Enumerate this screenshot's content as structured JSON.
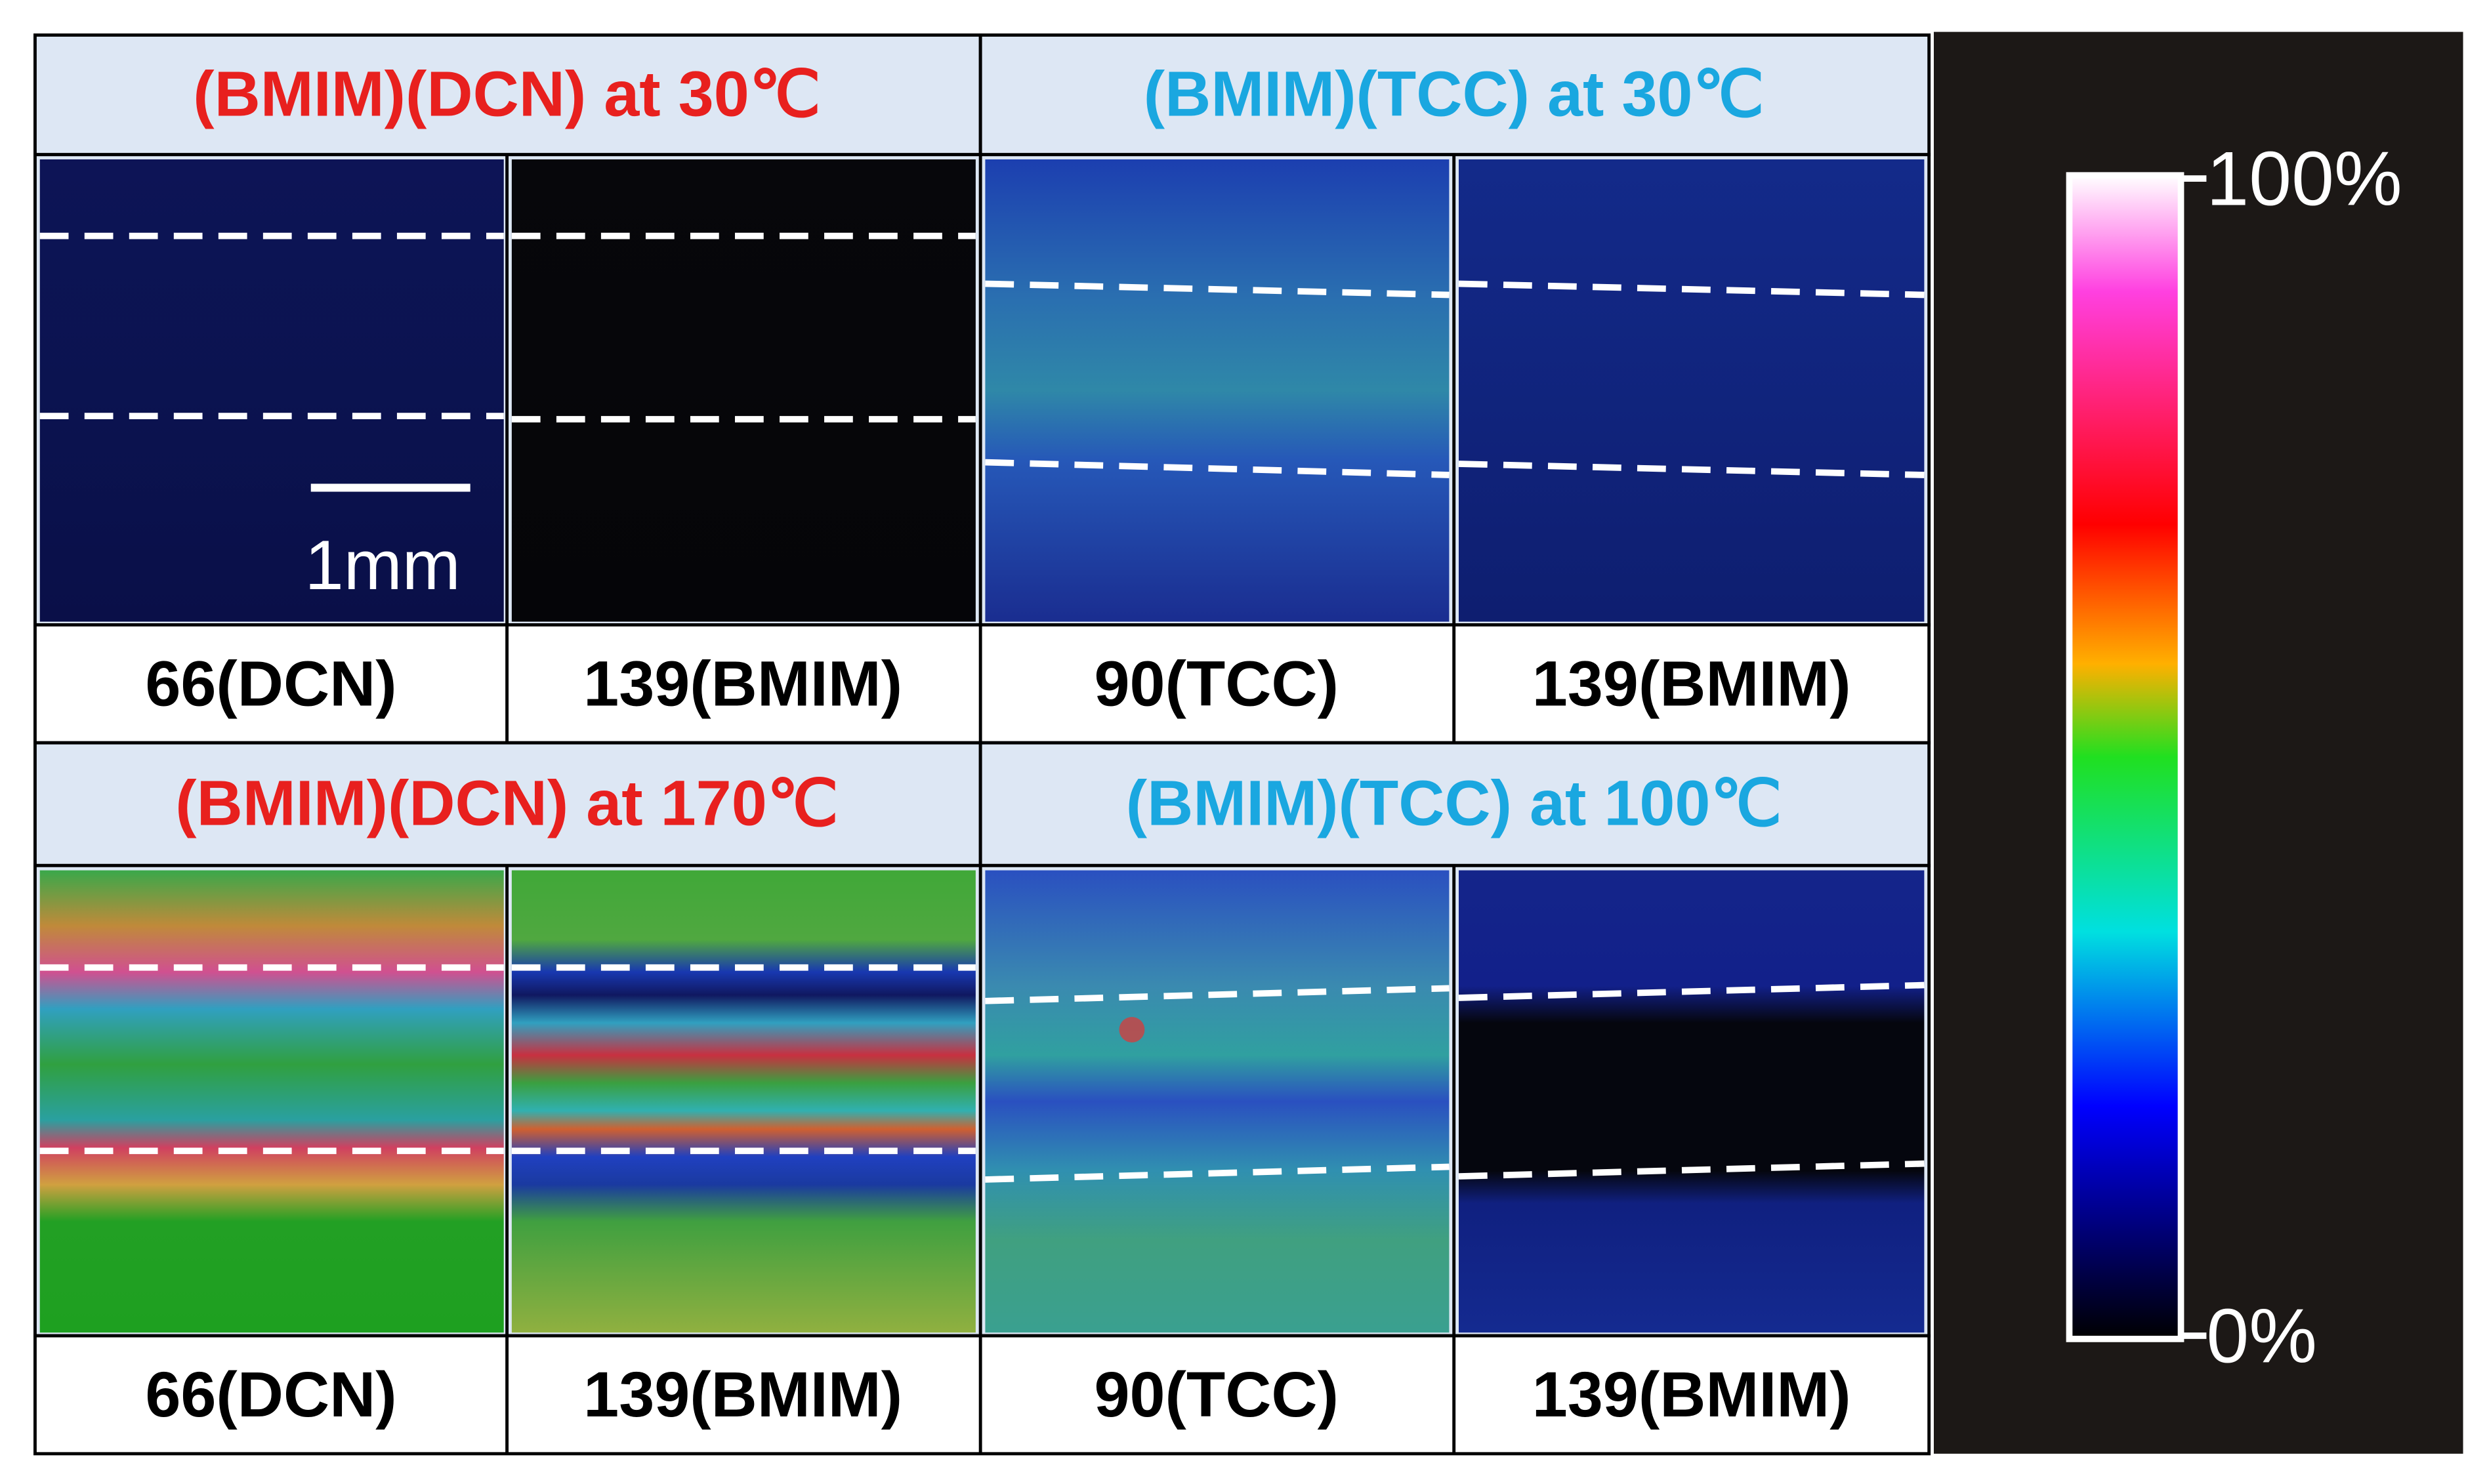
{
  "panels": [
    {
      "title": "(BMIM)(DCN) at 30℃",
      "images": [
        {
          "label": "66(DCN)"
        },
        {
          "label": "139(BMIM)"
        }
      ]
    },
    {
      "title": "(BMIM)(TCC) at 30℃",
      "images": [
        {
          "label": "90(TCC)"
        },
        {
          "label": "139(BMIM)"
        }
      ]
    },
    {
      "title": "(BMIM)(DCN) at 170℃",
      "images": [
        {
          "label": "66(DCN)"
        },
        {
          "label": "139(BMIM)"
        }
      ]
    },
    {
      "title": "(BMIM)(TCC) at 100℃",
      "images": [
        {
          "label": "90(TCC)"
        },
        {
          "label": "139(BMIM)"
        }
      ]
    }
  ],
  "scale_bar": "1mm",
  "colorbar": {
    "max": "100%",
    "min": "0%"
  }
}
